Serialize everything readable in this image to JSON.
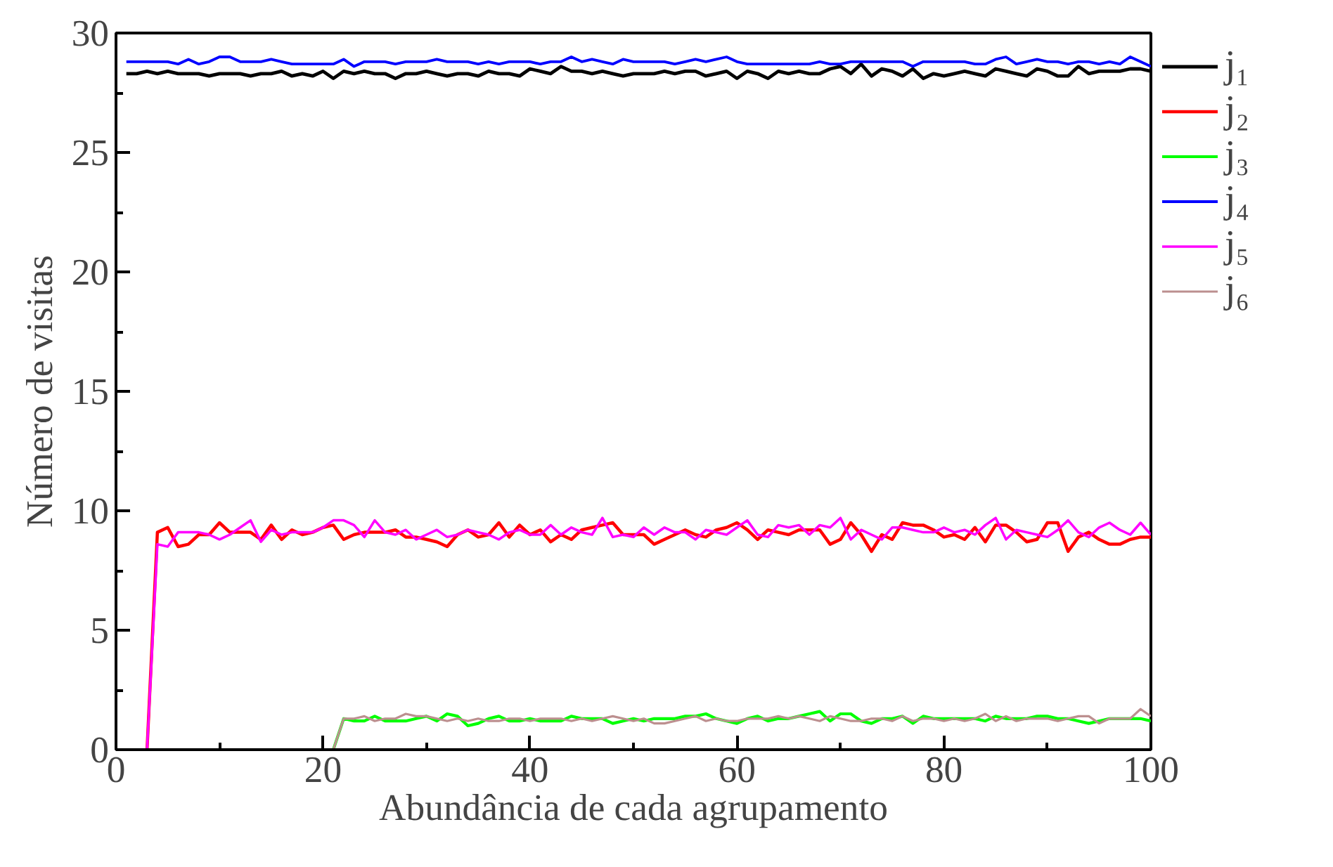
{
  "chart_data": {
    "type": "line",
    "xlabel": "Abundância de cada agrupamento",
    "ylabel": "Número de visitas",
    "xlim": [
      0,
      100
    ],
    "ylim": [
      0,
      30
    ],
    "xticks": [
      0,
      {
        "value": 10,
        "label": null
      },
      20,
      {
        "value": 30,
        "label": null
      },
      40,
      {
        "value": 50,
        "label": null
      },
      60,
      {
        "value": 70,
        "label": null
      },
      80,
      {
        "value": 90,
        "label": null
      },
      100
    ],
    "yticks": [
      0,
      {
        "value": 2.5,
        "label": null
      },
      5,
      {
        "value": 7.5,
        "label": null
      },
      10,
      {
        "value": 12.5,
        "label": null
      },
      15,
      {
        "value": 17.5,
        "label": null
      },
      20,
      {
        "value": 22.5,
        "label": null
      },
      25,
      {
        "value": 27.5,
        "label": null
      },
      30
    ],
    "grid": false,
    "legend": "right",
    "x": [
      1,
      2,
      3,
      4,
      5,
      6,
      7,
      8,
      9,
      10,
      11,
      12,
      13,
      14,
      15,
      16,
      17,
      18,
      19,
      20,
      21,
      22,
      23,
      24,
      25,
      26,
      27,
      28,
      29,
      30,
      31,
      32,
      33,
      34,
      35,
      36,
      37,
      38,
      39,
      40,
      41,
      42,
      43,
      44,
      45,
      46,
      47,
      48,
      49,
      50,
      51,
      52,
      53,
      54,
      55,
      56,
      57,
      58,
      59,
      60,
      61,
      62,
      63,
      64,
      65,
      66,
      67,
      68,
      69,
      70,
      71,
      72,
      73,
      74,
      75,
      76,
      77,
      78,
      79,
      80,
      81,
      82,
      83,
      84,
      85,
      86,
      87,
      88,
      89,
      90,
      91,
      92,
      93,
      94,
      95,
      96,
      97,
      98,
      99,
      100
    ],
    "series": [
      {
        "name": "j₁",
        "color": "#000000",
        "values": [
          28.3,
          28.3,
          28.4,
          28.3,
          28.4,
          28.3,
          28.3,
          28.3,
          28.2,
          28.3,
          28.3,
          28.3,
          28.2,
          28.3,
          28.3,
          28.4,
          28.2,
          28.3,
          28.2,
          28.4,
          28.1,
          28.4,
          28.3,
          28.4,
          28.3,
          28.3,
          28.1,
          28.3,
          28.3,
          28.4,
          28.3,
          28.2,
          28.3,
          28.3,
          28.2,
          28.4,
          28.3,
          28.3,
          28.2,
          28.5,
          28.4,
          28.3,
          28.6,
          28.4,
          28.4,
          28.3,
          28.4,
          28.3,
          28.2,
          28.3,
          28.3,
          28.3,
          28.4,
          28.3,
          28.4,
          28.4,
          28.2,
          28.3,
          28.4,
          28.1,
          28.4,
          28.3,
          28.1,
          28.4,
          28.3,
          28.4,
          28.3,
          28.3,
          28.5,
          28.6,
          28.3,
          28.7,
          28.2,
          28.5,
          28.4,
          28.2,
          28.5,
          28.1,
          28.3,
          28.2,
          28.3,
          28.4,
          28.3,
          28.2,
          28.5,
          28.4,
          28.3,
          28.2,
          28.5,
          28.4,
          28.2,
          28.2,
          28.6,
          28.3,
          28.4,
          28.4,
          28.4,
          28.5,
          28.5,
          28.4
        ]
      },
      {
        "name": "j₂",
        "color": "#ff0000",
        "values": [
          null,
          null,
          0,
          9.1,
          9.3,
          8.5,
          8.6,
          9.0,
          9.0,
          9.5,
          9.1,
          9.1,
          9.1,
          8.8,
          9.4,
          8.8,
          9.2,
          9.0,
          9.1,
          9.3,
          9.4,
          8.8,
          9.0,
          9.1,
          9.1,
          9.1,
          9.2,
          8.9,
          8.9,
          8.8,
          8.7,
          8.5,
          9.0,
          9.2,
          8.9,
          9.0,
          9.5,
          8.9,
          9.4,
          9.0,
          9.2,
          8.7,
          9.0,
          8.8,
          9.2,
          9.3,
          9.4,
          9.5,
          9.0,
          9.0,
          9.0,
          8.6,
          8.8,
          9.0,
          9.2,
          9.0,
          8.9,
          9.2,
          9.3,
          9.5,
          9.2,
          8.8,
          9.2,
          9.1,
          9.0,
          9.2,
          9.2,
          9.2,
          8.6,
          8.8,
          9.5,
          9.0,
          8.3,
          9.0,
          8.8,
          9.5,
          9.4,
          9.4,
          9.2,
          8.9,
          9.0,
          8.8,
          9.3,
          8.7,
          9.4,
          9.4,
          9.1,
          8.7,
          8.8,
          9.5,
          9.5,
          8.3,
          8.9,
          9.1,
          8.8,
          8.6,
          8.6,
          8.8,
          8.9,
          8.9
        ]
      },
      {
        "name": "j₃",
        "color": "#00ff00",
        "values": [
          null,
          null,
          null,
          null,
          null,
          null,
          null,
          null,
          null,
          null,
          null,
          null,
          null,
          null,
          null,
          null,
          null,
          null,
          null,
          null,
          0,
          1.3,
          1.2,
          1.2,
          1.4,
          1.2,
          1.2,
          1.2,
          1.3,
          1.4,
          1.2,
          1.5,
          1.4,
          1.0,
          1.1,
          1.3,
          1.4,
          1.2,
          1.2,
          1.3,
          1.2,
          1.2,
          1.2,
          1.4,
          1.3,
          1.3,
          1.3,
          1.1,
          1.2,
          1.3,
          1.2,
          1.3,
          1.3,
          1.3,
          1.4,
          1.4,
          1.5,
          1.3,
          1.2,
          1.1,
          1.3,
          1.4,
          1.2,
          1.3,
          1.3,
          1.4,
          1.5,
          1.6,
          1.2,
          1.5,
          1.5,
          1.2,
          1.1,
          1.3,
          1.3,
          1.4,
          1.1,
          1.4,
          1.3,
          1.3,
          1.3,
          1.3,
          1.3,
          1.2,
          1.4,
          1.3,
          1.3,
          1.3,
          1.4,
          1.4,
          1.3,
          1.3,
          1.2,
          1.1,
          1.2,
          1.3,
          1.3,
          1.3,
          1.3,
          1.2
        ]
      },
      {
        "name": "j₄",
        "color": "#0000ff",
        "values": [
          28.8,
          28.8,
          28.8,
          28.8,
          28.8,
          28.7,
          28.9,
          28.7,
          28.8,
          29.0,
          29.0,
          28.8,
          28.8,
          28.8,
          28.9,
          28.8,
          28.7,
          28.7,
          28.7,
          28.7,
          28.7,
          28.9,
          28.6,
          28.8,
          28.8,
          28.8,
          28.7,
          28.8,
          28.8,
          28.8,
          28.9,
          28.8,
          28.8,
          28.8,
          28.7,
          28.8,
          28.7,
          28.8,
          28.8,
          28.8,
          28.7,
          28.8,
          28.8,
          29.0,
          28.8,
          28.9,
          28.8,
          28.7,
          28.9,
          28.8,
          28.8,
          28.8,
          28.8,
          28.7,
          28.8,
          28.9,
          28.8,
          28.9,
          29.0,
          28.8,
          28.7,
          28.7,
          28.7,
          28.7,
          28.7,
          28.7,
          28.7,
          28.8,
          28.7,
          28.7,
          28.8,
          28.8,
          28.8,
          28.8,
          28.8,
          28.8,
          28.6,
          28.8,
          28.8,
          28.8,
          28.8,
          28.8,
          28.7,
          28.7,
          28.9,
          29.0,
          28.7,
          28.8,
          28.9,
          28.8,
          28.8,
          28.7,
          28.8,
          28.8,
          28.7,
          28.8,
          28.7,
          29.0,
          28.8,
          28.6
        ]
      },
      {
        "name": "j₅",
        "color": "#ff00ff",
        "values": [
          0,
          0,
          0,
          8.6,
          8.5,
          9.1,
          9.1,
          9.1,
          9.0,
          8.8,
          9.0,
          9.3,
          9.6,
          8.7,
          9.2,
          9.0,
          9.1,
          9.1,
          9.1,
          9.3,
          9.6,
          9.6,
          9.4,
          8.9,
          9.6,
          9.1,
          9.0,
          9.2,
          8.8,
          9.0,
          9.2,
          8.9,
          9.0,
          9.2,
          9.1,
          9.0,
          8.8,
          9.1,
          9.2,
          9.0,
          9.0,
          9.4,
          9.0,
          9.3,
          9.1,
          9.0,
          9.7,
          8.9,
          9.0,
          8.9,
          9.3,
          9.0,
          9.3,
          9.1,
          9.1,
          8.8,
          9.2,
          9.1,
          9.0,
          9.3,
          9.6,
          9.0,
          8.9,
          9.4,
          9.3,
          9.4,
          9.0,
          9.4,
          9.3,
          9.7,
          8.8,
          9.2,
          9.0,
          8.8,
          9.3,
          9.3,
          9.2,
          9.1,
          9.1,
          9.3,
          9.1,
          9.2,
          9.0,
          9.4,
          9.7,
          8.8,
          9.2,
          9.1,
          9.0,
          8.9,
          9.2,
          9.6,
          9.1,
          8.9,
          9.3,
          9.5,
          9.2,
          9.0,
          9.5,
          9.0
        ]
      },
      {
        "name": "j₆",
        "color": "#bc8f8f",
        "values": [
          null,
          null,
          null,
          null,
          null,
          null,
          null,
          null,
          null,
          null,
          null,
          null,
          null,
          null,
          null,
          null,
          null,
          null,
          0,
          0,
          0,
          1.3,
          1.3,
          1.4,
          1.2,
          1.3,
          1.3,
          1.5,
          1.4,
          1.4,
          1.3,
          1.2,
          1.3,
          1.2,
          1.3,
          1.2,
          1.2,
          1.3,
          1.3,
          1.2,
          1.3,
          1.3,
          1.3,
          1.2,
          1.3,
          1.2,
          1.3,
          1.4,
          1.3,
          1.2,
          1.3,
          1.1,
          1.1,
          1.2,
          1.3,
          1.4,
          1.2,
          1.3,
          1.2,
          1.2,
          1.3,
          1.3,
          1.3,
          1.4,
          1.3,
          1.4,
          1.3,
          1.2,
          1.4,
          1.3,
          1.2,
          1.2,
          1.3,
          1.3,
          1.2,
          1.4,
          1.2,
          1.3,
          1.3,
          1.2,
          1.3,
          1.2,
          1.3,
          1.5,
          1.2,
          1.4,
          1.2,
          1.3,
          1.3,
          1.3,
          1.2,
          1.3,
          1.4,
          1.4,
          1.1,
          1.3,
          1.3,
          1.3,
          1.7,
          1.4
        ]
      }
    ]
  }
}
